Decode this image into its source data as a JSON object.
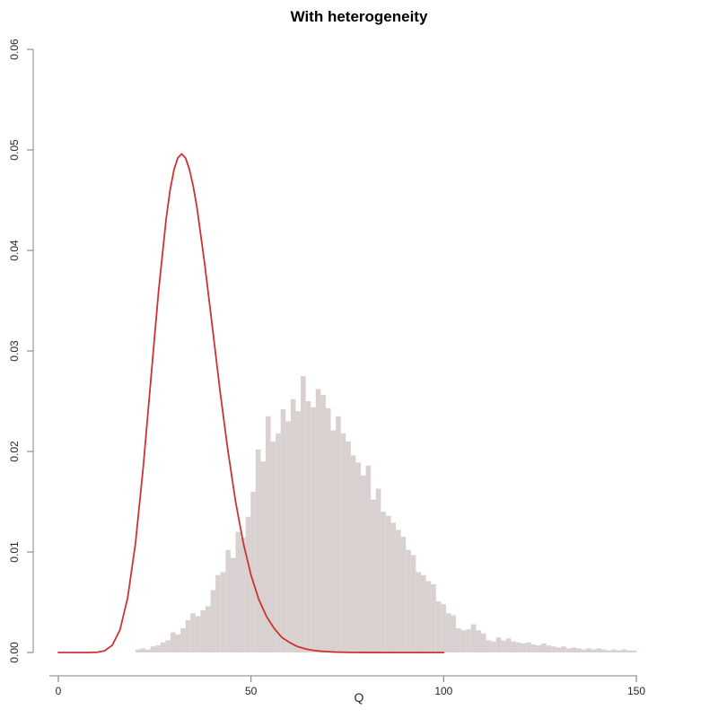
{
  "title": "With heterogeneity",
  "colors": {
    "background": "#ffffff",
    "histogram_fill": "#d8d1d0",
    "curve_stroke": "#cc3333",
    "axis_line": "#9a9a9a",
    "tick_mark": "#8a8a8a",
    "label_text": "#262626",
    "title_text": "#000000"
  },
  "chart_data": {
    "type": "bar",
    "subtype": "histogram-with-density-curve",
    "title": "With heterogeneity",
    "xlabel": "Q",
    "ylabel": "",
    "xlim": [
      0,
      150
    ],
    "ylim": [
      0,
      0.06
    ],
    "x_ticks": [
      0,
      50,
      100,
      150
    ],
    "x_tick_labels": [
      "0",
      "50",
      "100",
      "150"
    ],
    "y_ticks": [
      0,
      0.01,
      0.02,
      0.03,
      0.04,
      0.05,
      0.06
    ],
    "y_tick_labels": [
      "0.00",
      "0.01",
      "0.02",
      "0.03",
      "0.04",
      "0.05",
      "0.06"
    ],
    "grid": false,
    "legend": "none",
    "histogram": {
      "bin_start": 20,
      "bin_width": 1.3,
      "heights": [
        0.0003,
        0.0004,
        0.0003,
        0.0006,
        0.0007,
        0.001,
        0.0012,
        0.002,
        0.0018,
        0.0024,
        0.0032,
        0.0039,
        0.0036,
        0.0042,
        0.0046,
        0.0062,
        0.0077,
        0.008,
        0.0102,
        0.0094,
        0.012,
        0.0114,
        0.0135,
        0.016,
        0.0202,
        0.019,
        0.0235,
        0.021,
        0.0218,
        0.0242,
        0.023,
        0.0252,
        0.024,
        0.0275,
        0.025,
        0.0244,
        0.0262,
        0.0256,
        0.0243,
        0.0221,
        0.0235,
        0.0218,
        0.021,
        0.0196,
        0.0189,
        0.0176,
        0.0186,
        0.0152,
        0.0163,
        0.014,
        0.0136,
        0.0129,
        0.0122,
        0.0115,
        0.0102,
        0.0097,
        0.008,
        0.0077,
        0.0071,
        0.0068,
        0.0051,
        0.0048,
        0.0039,
        0.0037,
        0.0024,
        0.0022,
        0.0023,
        0.0028,
        0.0022,
        0.0019,
        0.0012,
        0.0011,
        0.0015,
        0.0012,
        0.0014,
        0.0011,
        0.001,
        0.0009,
        0.001,
        0.0008,
        0.0007,
        0.0009,
        0.0007,
        0.0006,
        0.0005,
        0.0006,
        0.0004,
        0.0005,
        0.0004,
        0.0003,
        0.0004,
        0.0003,
        0.0004,
        0.0003,
        0.0002,
        0.0003,
        0.0002,
        0.0003,
        0.0002,
        0.0002
      ]
    },
    "curve": {
      "name": "reference-density-curve",
      "x_range_drawn": [
        0,
        100
      ],
      "peak": {
        "x": 32,
        "y": 0.0496
      },
      "points": [
        [
          0,
          0
        ],
        [
          5,
          0
        ],
        [
          8,
          2e-06
        ],
        [
          10,
          2.45e-05
        ],
        [
          12,
          0.00017
        ],
        [
          14,
          0.00072
        ],
        [
          16,
          0.00225
        ],
        [
          18,
          0.00546
        ],
        [
          20,
          0.0108
        ],
        [
          22,
          0.0183
        ],
        [
          24,
          0.0271
        ],
        [
          26,
          0.0359
        ],
        [
          28,
          0.0432
        ],
        [
          29,
          0.046
        ],
        [
          30,
          0.048
        ],
        [
          31,
          0.0492
        ],
        [
          32,
          0.0496
        ],
        [
          33,
          0.0492
        ],
        [
          34,
          0.0481
        ],
        [
          35,
          0.0464
        ],
        [
          36,
          0.0442
        ],
        [
          38,
          0.0386
        ],
        [
          40,
          0.0323
        ],
        [
          42,
          0.0259
        ],
        [
          44,
          0.0201
        ],
        [
          46,
          0.015
        ],
        [
          48,
          0.0109
        ],
        [
          50,
          0.0077
        ],
        [
          52,
          0.0053
        ],
        [
          54,
          0.0036
        ],
        [
          56,
          0.0024
        ],
        [
          58,
          0.0015
        ],
        [
          60,
          0.001
        ],
        [
          62,
          0.0006
        ],
        [
          64,
          0.00037
        ],
        [
          66,
          0.00022
        ],
        [
          68,
          0.00013
        ],
        [
          70,
          8e-05
        ],
        [
          72,
          4e-05
        ],
        [
          76,
          1.4e-05
        ],
        [
          80,
          4e-06
        ],
        [
          85,
          1e-06
        ],
        [
          90,
          0
        ],
        [
          95,
          0
        ],
        [
          100,
          0
        ]
      ]
    }
  }
}
